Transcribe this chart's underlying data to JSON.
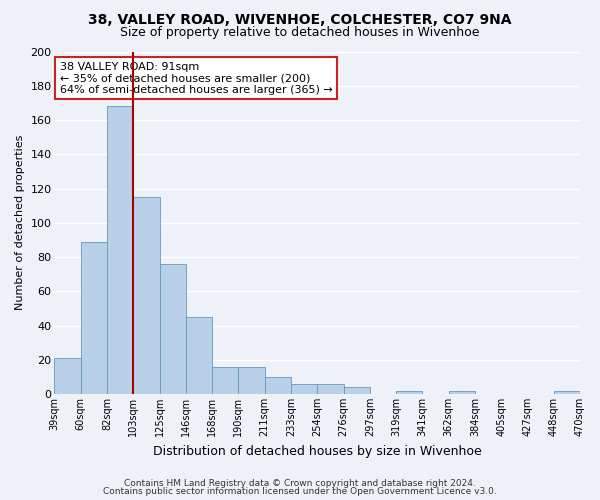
{
  "title": "38, VALLEY ROAD, WIVENHOE, COLCHESTER, CO7 9NA",
  "subtitle": "Size of property relative to detached houses in Wivenhoe",
  "xlabel": "Distribution of detached houses by size in Wivenhoe",
  "ylabel": "Number of detached properties",
  "bar_values": [
    21,
    89,
    168,
    115,
    76,
    45,
    16,
    16,
    10,
    6,
    6,
    4,
    0,
    2,
    0,
    2,
    0,
    0,
    0,
    2
  ],
  "bar_labels": [
    "39sqm",
    "60sqm",
    "82sqm",
    "103sqm",
    "125sqm",
    "146sqm",
    "168sqm",
    "190sqm",
    "211sqm",
    "233sqm",
    "254sqm",
    "276sqm",
    "297sqm",
    "319sqm",
    "341sqm",
    "362sqm",
    "384sqm",
    "405sqm",
    "427sqm",
    "448sqm",
    "470sqm"
  ],
  "bar_color": "#b8d0e8",
  "bar_edge_color": "#6699bb",
  "marker_color": "#aa0000",
  "annotation_title": "38 VALLEY ROAD: 91sqm",
  "annotation_line1": "← 35% of detached houses are smaller (200)",
  "annotation_line2": "64% of semi-detached houses are larger (365) →",
  "annotation_box_color": "#ffffff",
  "annotation_box_edge": "#cc2222",
  "ylim": [
    0,
    200
  ],
  "yticks": [
    0,
    20,
    40,
    60,
    80,
    100,
    120,
    140,
    160,
    180,
    200
  ],
  "footer1": "Contains HM Land Registry data © Crown copyright and database right 2024.",
  "footer2": "Contains public sector information licensed under the Open Government Licence v3.0.",
  "bg_color": "#eef2f8",
  "grid_color": "#ffffff",
  "title_fontsize": 10,
  "subtitle_fontsize": 9
}
